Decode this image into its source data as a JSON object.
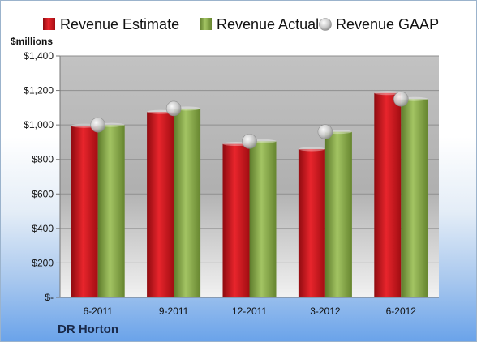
{
  "chart_data": {
    "type": "bar",
    "categories": [
      "6-2011",
      "9-2011",
      "12-2011",
      "3-2012",
      "6-2012"
    ],
    "series": [
      {
        "name": "Revenue Estimate",
        "kind": "bar",
        "color": "#d0131a",
        "values": [
          995,
          1075,
          890,
          860,
          1185
        ]
      },
      {
        "name": "Revenue Actual",
        "kind": "bar",
        "color": "#8ab04c",
        "values": [
          1000,
          1095,
          905,
          960,
          1150
        ]
      },
      {
        "name": "Revenue GAAP",
        "kind": "marker",
        "color": "#c4c4c4",
        "values": [
          1000,
          1095,
          905,
          960,
          1150
        ]
      }
    ],
    "ylabel": "$millions",
    "ylim": [
      0,
      1400
    ],
    "yticks": [
      0,
      200,
      400,
      600,
      800,
      1000,
      1200,
      1400
    ],
    "ytick_labels": [
      "$-",
      "$200",
      "$400",
      "$600",
      "$800",
      "$1,000",
      "$1,200",
      "$1,400"
    ],
    "legend": "top",
    "grid": true,
    "company": "DR Horton"
  }
}
